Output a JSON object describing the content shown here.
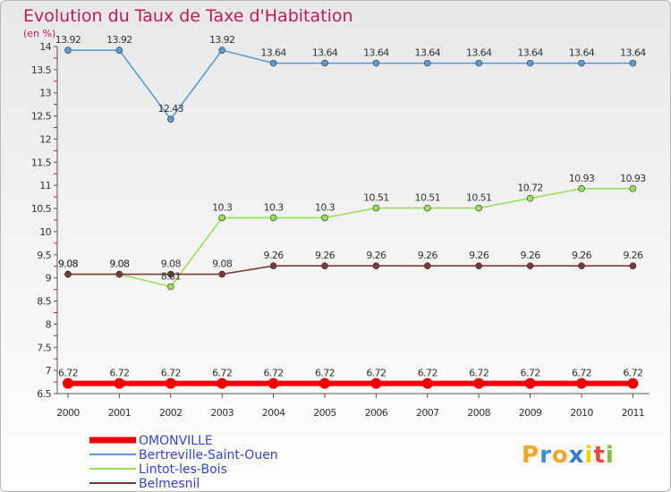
{
  "chart_data": {
    "type": "line",
    "title": "Evolution du Taux de Taxe d'Habitation",
    "subtitle": "(en %)",
    "x": [
      "2000",
      "2001",
      "2002",
      "2003",
      "2004",
      "2005",
      "2006",
      "2007",
      "2008",
      "2009",
      "2010",
      "2011"
    ],
    "ylim": [
      6.5,
      14
    ],
    "yticks": [
      "6.5",
      "7",
      "7.5",
      "8",
      "8.5",
      "9",
      "9.5",
      "10",
      "10.5",
      "11",
      "11.5",
      "12",
      "12.5",
      "13",
      "13.5",
      "14"
    ],
    "grid": false,
    "legend": "bottom-left",
    "series": [
      {
        "name": "OMONVILLE",
        "color": "#ee0000",
        "values": [
          6.72,
          6.72,
          6.72,
          6.72,
          6.72,
          6.72,
          6.72,
          6.72,
          6.72,
          6.72,
          6.72,
          6.72
        ],
        "labels": [
          "6.72",
          "6.72",
          "6.72",
          "6.72",
          "6.72",
          "6.72",
          "6.72",
          "6.72",
          "6.72",
          "6.72",
          "6.72",
          "6.72"
        ]
      },
      {
        "name": "Bertreville-Saint-Ouen",
        "color": "#5b9bd5",
        "values": [
          13.92,
          13.92,
          12.43,
          13.92,
          13.64,
          13.64,
          13.64,
          13.64,
          13.64,
          13.64,
          13.64,
          13.64
        ],
        "labels": [
          "13.92",
          "13.92",
          "12.43",
          "13.92",
          "13.64",
          "13.64",
          "13.64",
          "13.64",
          "13.64",
          "13.64",
          "13.64",
          "13.64"
        ]
      },
      {
        "name": "Lintot-les-Bois",
        "color": "#99e05a",
        "values": [
          9.08,
          9.08,
          8.81,
          10.3,
          10.3,
          10.3,
          10.51,
          10.51,
          10.51,
          10.72,
          10.93,
          10.93
        ],
        "labels": [
          "9.08",
          "9.08",
          "8.81",
          "10.3",
          "10.3",
          "10.3",
          "10.51",
          "10.51",
          "10.51",
          "10.72",
          "10.93",
          "10.93"
        ]
      },
      {
        "name": "Belmesnil",
        "color": "#7a3a3a",
        "values": [
          9.08,
          9.08,
          9.08,
          9.08,
          9.26,
          9.26,
          9.26,
          9.26,
          9.26,
          9.26,
          9.26,
          9.26
        ],
        "labels": [
          "9.08",
          "9.08",
          "9.08",
          "9.08",
          "9.26",
          "9.26",
          "9.26",
          "9.26",
          "9.26",
          "9.26",
          "9.26",
          "9.26"
        ]
      }
    ]
  },
  "logo": {
    "text": "Proxiti"
  }
}
